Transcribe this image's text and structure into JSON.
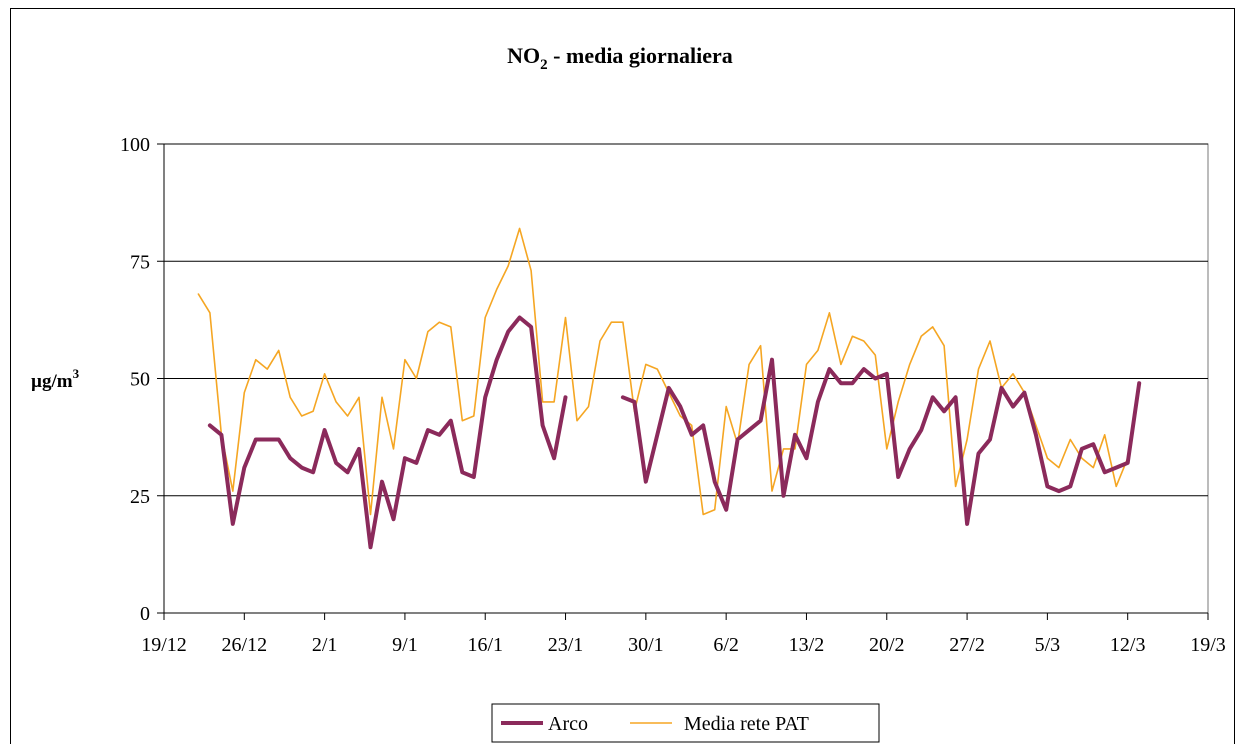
{
  "chart_data": {
    "type": "line",
    "title": "NO",
    "title_sub": "2",
    "title_suffix": " - media giornaliera",
    "ylabel": "µg/m",
    "ylabel_sup": "3",
    "xlabel": "",
    "ylim": [
      0,
      100
    ],
    "yticks": [
      0,
      25,
      50,
      75,
      100
    ],
    "xticks": [
      "19/12",
      "26/12",
      "2/1",
      "9/1",
      "16/1",
      "23/1",
      "30/1",
      "6/2",
      "13/2",
      "20/2",
      "27/2",
      "5/3",
      "12/3",
      "19/3"
    ],
    "x_start": "19/12",
    "grid": true,
    "legend_position": "bottom",
    "series": [
      {
        "name": "Arco",
        "color": "#8B2A5B",
        "values": [
          null,
          null,
          null,
          null,
          40,
          38,
          19,
          31,
          37,
          37,
          37,
          33,
          31,
          30,
          39,
          32,
          30,
          35,
          14,
          28,
          20,
          33,
          32,
          39,
          38,
          41,
          30,
          29,
          46,
          54,
          60,
          63,
          61,
          40,
          33,
          46,
          null,
          null,
          null,
          null,
          46,
          45,
          28,
          38,
          48,
          44,
          38,
          40,
          28,
          22,
          37,
          39,
          41,
          54,
          25,
          38,
          33,
          45,
          52,
          49,
          49,
          52,
          50,
          51,
          29,
          35,
          39,
          46,
          43,
          46,
          19,
          34,
          37,
          48,
          44,
          47,
          38,
          27,
          26,
          27,
          35,
          36,
          30,
          31,
          32,
          49
        ]
      },
      {
        "name": "Media rete PAT",
        "color": "#F5A623",
        "values": [
          null,
          null,
          null,
          68,
          64,
          38,
          26,
          47,
          54,
          52,
          56,
          46,
          42,
          43,
          51,
          45,
          42,
          46,
          21,
          46,
          35,
          54,
          50,
          60,
          62,
          61,
          41,
          42,
          63,
          69,
          74,
          82,
          73,
          45,
          45,
          63,
          41,
          44,
          58,
          62,
          62,
          43,
          53,
          52,
          47,
          42,
          40,
          21,
          22,
          44,
          36,
          53,
          57,
          26,
          35,
          35,
          53,
          56,
          64,
          53,
          59,
          58,
          55,
          35,
          45,
          53,
          59,
          61,
          57,
          27,
          37,
          52,
          58,
          48,
          51,
          47,
          40,
          33,
          31,
          37,
          33,
          31,
          38,
          27,
          33,
          null
        ]
      }
    ]
  }
}
